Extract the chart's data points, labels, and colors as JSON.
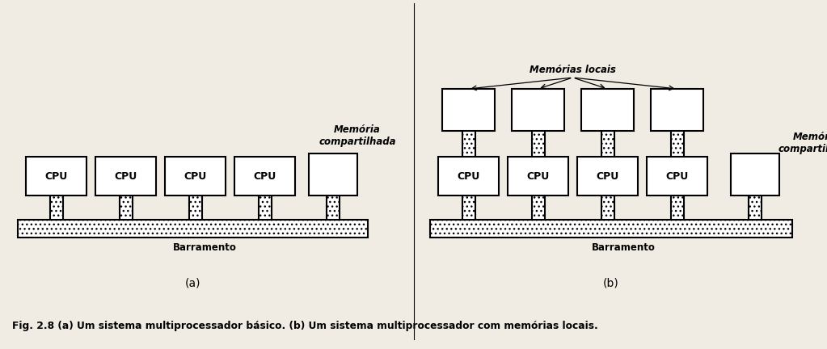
{
  "bg_color": "#f0ece4",
  "caption": "Fig. 2.8 (a) Um sistema multiprocessador básico. (b) Um sistema multiprocessador com memórias locais.",
  "label_a": "(a)",
  "label_b": "(b)",
  "mem_compartilhada_a": "Memória\ncompartilhada",
  "mem_compartilhada_b": "Memória\ncompartilhada",
  "memorias_locais": "Memórias locais",
  "barramento": "Barramento",
  "cpu_label": "CPU"
}
